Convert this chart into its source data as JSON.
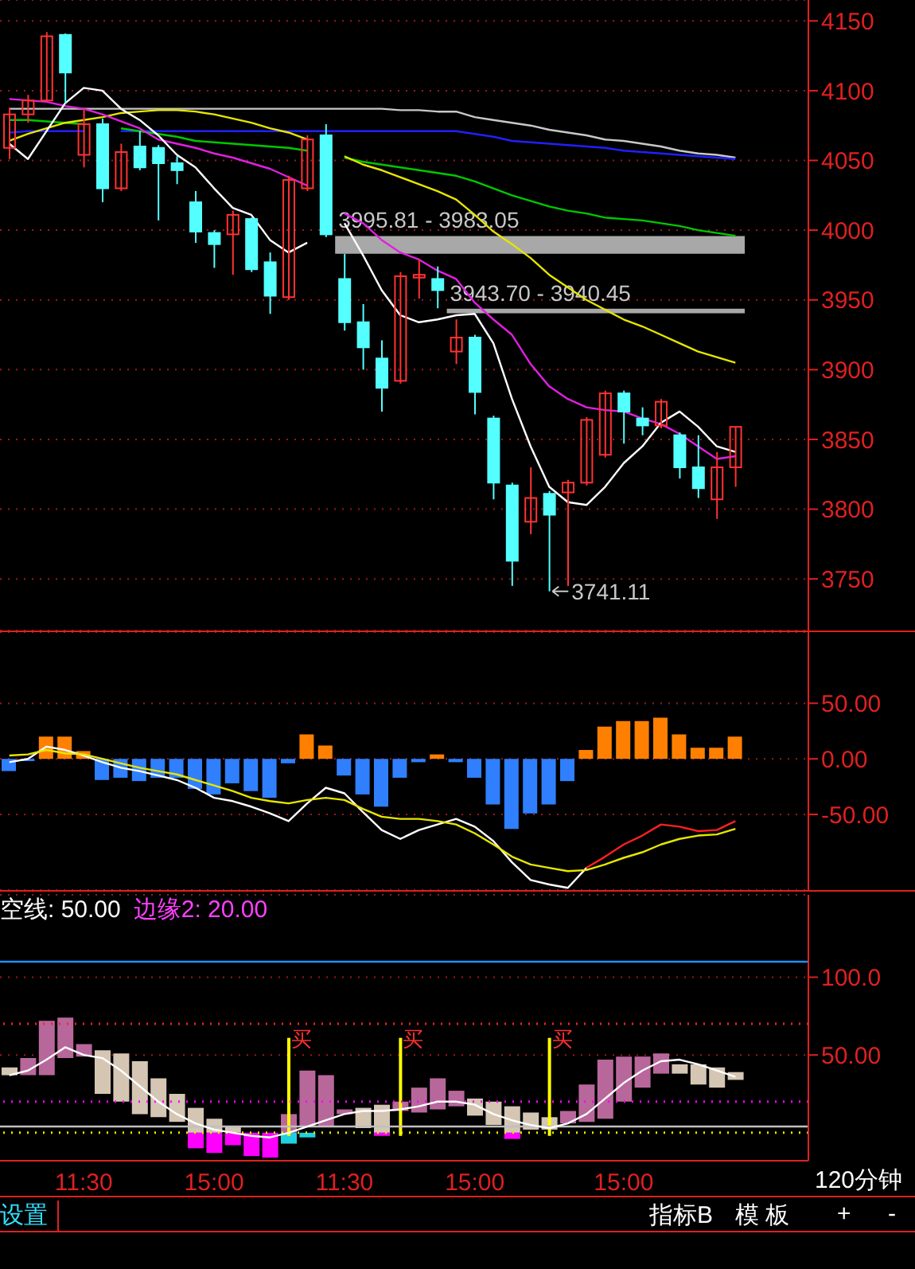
{
  "chart_data": [
    {
      "type": "candlestick",
      "categories": [
        null,
        null,
        null,
        null,
        null,
        null,
        null,
        null,
        null,
        null,
        null,
        null,
        null,
        null,
        null,
        null,
        null,
        null,
        null,
        null,
        null,
        null,
        null,
        null,
        null,
        null,
        null,
        null,
        null,
        null,
        null,
        null,
        null,
        null,
        null,
        null,
        null,
        null,
        null,
        null
      ],
      "ohlc": [
        [
          4059,
          4088,
          4051,
          4083
        ],
        [
          4083,
          4097,
          4077,
          4093
        ],
        [
          4093,
          4142,
          4093,
          4139
        ],
        [
          4140,
          4141,
          4091,
          4113
        ],
        [
          4054,
          4087,
          4045,
          4076
        ],
        [
          4076,
          4080,
          4020,
          4030
        ],
        [
          4030,
          4062,
          4028,
          4056
        ],
        [
          4060,
          4071,
          4043,
          4045
        ],
        [
          4059,
          4061,
          4007,
          4048
        ],
        [
          4048,
          4053,
          4033,
          4043
        ],
        [
          4020,
          4028,
          3991,
          3999
        ],
        [
          3998,
          4000,
          3973,
          3990
        ],
        [
          3997,
          4014,
          3968,
          4011
        ],
        [
          4008,
          4009,
          3970,
          3972
        ],
        [
          3977,
          3984,
          3940,
          3953
        ],
        [
          3952,
          4039,
          3950,
          4036
        ],
        [
          4030,
          4068,
          4028,
          4065
        ],
        [
          4068,
          4076,
          3995,
          3997
        ],
        [
          3965,
          3983,
          3928,
          3934
        ],
        [
          3934,
          3947,
          3900,
          3916
        ],
        [
          3908,
          3921,
          3870,
          3887
        ],
        [
          3892,
          3970,
          3890,
          3967
        ],
        [
          3966,
          3979,
          3951,
          3968
        ],
        [
          3965,
          3974,
          3944,
          3957
        ],
        [
          3913,
          3936,
          3904,
          3923
        ],
        [
          3923,
          3925,
          3868,
          3884
        ],
        [
          3865,
          3867,
          3807,
          3819
        ],
        [
          3817,
          3819,
          3745,
          3763
        ],
        [
          3791,
          3830,
          3782,
          3808
        ],
        [
          3811,
          3813,
          3741.11,
          3796
        ],
        [
          3812,
          3821,
          3745,
          3819
        ],
        [
          3819,
          3866,
          3817,
          3864
        ],
        [
          3839,
          3885,
          3837,
          3883
        ],
        [
          3883,
          3885,
          3847,
          3870
        ],
        [
          3865,
          3873,
          3853,
          3860
        ],
        [
          3860,
          3879,
          3858,
          3877
        ],
        [
          3853,
          3855,
          3822,
          3830
        ],
        [
          3830,
          3853,
          3808,
          3815
        ],
        [
          3807,
          3841,
          3793,
          3830
        ],
        [
          3830,
          3859,
          3816,
          3859
        ]
      ],
      "colors": [
        "#ff3232",
        "#ff3232",
        "#ff3232",
        "#54ffff",
        "#ff3232",
        "#54ffff",
        "#ff3232",
        "#54ffff",
        "#54ffff",
        "#54ffff",
        "#54ffff",
        "#54ffff",
        "#ff3232",
        "#54ffff",
        "#54ffff",
        "#ff3232",
        "#ff3232",
        "#54ffff",
        "#54ffff",
        "#54ffff",
        "#54ffff",
        "#ff3232",
        "#ff3232",
        "#54ffff",
        "#ff3232",
        "#54ffff",
        "#54ffff",
        "#54ffff",
        "#ff3232",
        "#54ffff",
        "#ff3232",
        "#ff3232",
        "#ff3232",
        "#54ffff",
        "#54ffff",
        "#ff3232",
        "#54ffff",
        "#54ffff",
        "#ff3232",
        "#ff3232"
      ],
      "series": [
        {
          "type": "line",
          "color": "#c8c8c8",
          "values": [
            4087,
            4087,
            4087,
            4087,
            4087,
            4087,
            4087,
            4087,
            4087,
            4087,
            4087,
            4087,
            4087,
            4087,
            4087,
            4087,
            4087,
            4087,
            4087,
            4087,
            4087,
            4086,
            4086,
            4085,
            4085,
            4081,
            4079,
            4077,
            4075,
            4072,
            4070,
            4068,
            4065,
            4064,
            4062,
            4060,
            4057,
            4055,
            4054,
            4052
          ]
        },
        {
          "type": "line",
          "color": "#2020ff",
          "values": [
            4070,
            4071,
            4071,
            4071,
            4071,
            null,
            4071,
            4071,
            4071,
            4071,
            4071,
            4071,
            4071,
            4071,
            4071,
            4071,
            4071,
            4071,
            4071,
            4071,
            4071,
            4071,
            4071,
            4071,
            4071,
            4069,
            4067,
            4064,
            4063,
            4062,
            4061,
            4060,
            4059,
            4057,
            4056,
            4055,
            4054,
            4053,
            4052,
            4051
          ]
        },
        {
          "type": "line",
          "color": "#00c800",
          "values": [
            4079,
            4079,
            4078,
            4077,
            4076,
            null,
            4073,
            4071,
            4069,
            4067,
            4064,
            4063,
            4062,
            4061,
            4060,
            4059,
            4057,
            null,
            4052,
            4049,
            4047,
            4045,
            4043,
            4041,
            4039,
            4035,
            4030,
            4025,
            4021,
            4017,
            4014,
            4012,
            4009,
            4008,
            4007,
            4005,
            4003,
            4000,
            3998,
            3996
          ]
        },
        {
          "type": "line",
          "color": "#e6e600",
          "values": [
            4064,
            4069,
            4073,
            4077,
            4079,
            4081,
            4084,
            4085,
            4086,
            4086,
            4085,
            4083,
            4080,
            4077,
            4073,
            4070,
            4065,
            null,
            4053,
            4047,
            4043,
            4038,
            4033,
            4028,
            4022,
            4011,
            3999,
            3990,
            3980,
            3968,
            3959,
            3950,
            3943,
            3936,
            3931,
            3925,
            3919,
            3913,
            3909,
            3905
          ]
        },
        {
          "type": "line",
          "color": "#e020e0",
          "values": [
            4094,
            4093,
            4092,
            4089,
            4087,
            4083,
            4078,
            4073,
            4065,
            4062,
            4059,
            4055,
            4052,
            4048,
            4044,
            4038,
            4032,
            null,
            4012,
            4005,
            3993,
            3984,
            3979,
            3971,
            3965,
            3948,
            3936,
            3925,
            3904,
            3888,
            3879,
            3873,
            3871,
            3870,
            3865,
            3861,
            3854,
            3845,
            3836,
            3838
          ]
        },
        {
          "type": "line",
          "color": "#ffffff",
          "values": [
            4062,
            4051,
            4071,
            4091,
            4102,
            4100,
            4087,
            4079,
            4068,
            4054,
            4045,
            4030,
            4016,
            4011,
            3993,
            3984,
            3991,
            null,
            4005,
            3982,
            3957,
            3939,
            3934,
            3936,
            3939,
            3940,
            3919,
            3879,
            3845,
            3816,
            3805,
            3803,
            3816,
            3833,
            3845,
            3862,
            3870,
            3859,
            3845,
            3841
          ]
        }
      ],
      "ylim": [
        3713,
        4165
      ],
      "yticks": [
        3750,
        3800,
        3850,
        3900,
        3950,
        4000,
        4050,
        4100,
        4150
      ],
      "grid": "y",
      "tick_labels": "y",
      "bands": [
        {
          "axis": "y",
          "from": 3983.05,
          "to": 3995.81,
          "label": "3995.81 - 3983.05",
          "color": "#a8a8a8"
        },
        {
          "axis": "y",
          "from": 3940.45,
          "to": 3943.7,
          "label": "3943.70 - 3940.45",
          "color": "#a8a8a8"
        }
      ],
      "annotations": [
        "3741.11"
      ]
    },
    {
      "type": "bar",
      "categories": [
        null,
        null,
        null,
        null,
        null,
        null,
        null,
        null,
        null,
        null,
        null,
        null,
        null,
        null,
        null,
        null,
        null,
        null,
        null,
        null,
        null,
        null,
        null,
        null,
        null,
        null,
        null,
        null,
        null,
        null,
        null,
        null,
        null,
        null,
        null,
        null,
        null,
        null,
        null,
        null
      ],
      "series": [
        {
          "type": "bar",
          "values": [
            -11,
            -2,
            20,
            20,
            7,
            -19,
            -17,
            -20,
            -17,
            -17,
            -27,
            -32,
            -22,
            -29,
            -35,
            -4,
            22,
            12,
            -15,
            -32,
            -43,
            -17,
            -3,
            4,
            -3,
            -17,
            -41,
            -63,
            -49,
            -41,
            -20,
            8,
            29,
            34,
            34,
            37,
            22,
            10,
            10,
            20
          ],
          "colors": [
            "#2f7fff",
            "#2f7fff",
            "#ff8000",
            "#ff8000",
            "#ff8000",
            "#2f7fff",
            "#2f7fff",
            "#2f7fff",
            "#2f7fff",
            "#2f7fff",
            "#2f7fff",
            "#2f7fff",
            "#2f7fff",
            "#2f7fff",
            "#2f7fff",
            "#2f7fff",
            "#ff8000",
            "#ff8000",
            "#2f7fff",
            "#2f7fff",
            "#2f7fff",
            "#2f7fff",
            "#2f7fff",
            "#ff8000",
            "#2f7fff",
            "#2f7fff",
            "#2f7fff",
            "#2f7fff",
            "#2f7fff",
            "#2f7fff",
            "#2f7fff",
            "#ff8000",
            "#ff8000",
            "#ff8000",
            "#ff8000",
            "#ff8000",
            "#ff8000",
            "#ff8000",
            "#ff8000",
            "#ff8000"
          ]
        },
        {
          "type": "line",
          "color": "#ffffff",
          "values": [
            -3,
            0,
            11,
            8,
            3,
            -3,
            -8,
            -11,
            -15,
            -19,
            -26,
            -35,
            -38,
            -43,
            -49,
            -56,
            -40,
            -26,
            -31,
            -48,
            -64,
            -72,
            -64,
            -59,
            -54,
            -61,
            -74,
            -93,
            -109,
            -113,
            -116,
            -98,
            null,
            null,
            null,
            null,
            null,
            null,
            null,
            null
          ]
        },
        {
          "type": "line",
          "color": "#ff2020",
          "values": [
            null,
            null,
            null,
            null,
            null,
            null,
            null,
            null,
            null,
            null,
            null,
            null,
            null,
            null,
            null,
            null,
            null,
            null,
            null,
            null,
            null,
            null,
            null,
            null,
            null,
            null,
            null,
            null,
            null,
            null,
            null,
            -98,
            -88,
            -77,
            -69,
            -59,
            -61,
            -65,
            -64,
            -56
          ]
        },
        {
          "type": "line",
          "color": "#e6e600",
          "values": [
            3,
            4,
            8,
            5,
            4,
            0,
            -4,
            -8,
            -11,
            -14,
            -19,
            -24,
            -29,
            -35,
            -38,
            -40,
            -37,
            -35,
            -37,
            -45,
            -52,
            -54,
            -54,
            -56,
            -59,
            -67,
            -77,
            -88,
            -95,
            -98,
            -101,
            -100,
            -95,
            -89,
            -84,
            -77,
            -72,
            -69,
            -68,
            -63
          ]
        }
      ],
      "ylim": [
        -118,
        114
      ],
      "yticks": [
        {
          "value": 50,
          "label": "50.00"
        },
        {
          "value": 0,
          "label": "0.00"
        },
        {
          "value": -50,
          "label": "-50.00"
        }
      ],
      "grid": "y",
      "tick_labels": "y"
    },
    {
      "type": "bar",
      "categories": [
        null,
        null,
        null,
        null,
        "11:30",
        null,
        null,
        null,
        null,
        null,
        null,
        "15:00",
        null,
        null,
        null,
        null,
        null,
        null,
        "11:30",
        null,
        null,
        null,
        null,
        null,
        null,
        "15:00",
        null,
        null,
        null,
        null,
        null,
        null,
        null,
        "15:00",
        null,
        null,
        null,
        null,
        null,
        null
      ],
      "series": [
        {
          "type": "bar",
          "base": [
            37,
            37,
            37,
            48,
            49,
            25,
            20,
            12,
            10,
            7,
            0,
            0,
            0,
            null,
            null,
            0,
            4,
            4,
            12,
            3,
            0,
            14,
            13,
            15,
            17,
            11,
            5,
            0,
            2,
            2,
            6,
            7,
            9,
            20,
            29,
            38,
            38,
            31,
            29,
            34
          ],
          "values": [
            5,
            11,
            35,
            26,
            8,
            28,
            31,
            34,
            25,
            18,
            16,
            9,
            4,
            null,
            null,
            12,
            36,
            33,
            3,
            13,
            18,
            6,
            16,
            20,
            10,
            11,
            15,
            17,
            11,
            8,
            8,
            24,
            38,
            29,
            20,
            13,
            6,
            13,
            13,
            5
          ],
          "colors": [
            "#d5c6b4",
            "#b8679b",
            "#b8679b",
            "#b8679b",
            "#b8679b",
            "#d5c6b4",
            "#d5c6b4",
            "#d5c6b4",
            "#d5c6b4",
            "#d5c6b4",
            "#d5c6b4",
            "#d5c6b4",
            "#d5c6b4",
            null,
            null,
            "#b8679b",
            "#b8679b",
            "#b8679b",
            "#b8679b",
            "#d5c6b4",
            "#d5c6b4",
            "#b8679b",
            "#b8679b",
            "#b8679b",
            "#b8679b",
            "#d5c6b4",
            "#d5c6b4",
            "#d5c6b4",
            "#d5c6b4",
            "#d5c6b4",
            "#b8679b",
            "#b8679b",
            "#b8679b",
            "#b8679b",
            "#b8679b",
            "#b8679b",
            "#d5c6b4",
            "#d5c6b4",
            "#d5c6b4",
            "#d5c6b4"
          ]
        },
        {
          "type": "bar",
          "base": [
            null,
            null,
            null,
            null,
            null,
            null,
            null,
            null,
            null,
            null,
            0,
            0,
            0,
            0,
            0,
            0,
            0,
            null,
            null,
            null,
            0,
            null,
            null,
            null,
            null,
            null,
            null,
            0,
            null,
            null,
            null,
            null,
            null,
            null,
            null,
            null,
            null,
            null,
            null,
            null
          ],
          "values": [
            null,
            null,
            null,
            null,
            null,
            null,
            null,
            null,
            null,
            null,
            -10,
            -13,
            -8,
            -15,
            -16,
            -7,
            -3,
            null,
            null,
            null,
            -2,
            null,
            null,
            null,
            null,
            null,
            null,
            -4,
            null,
            null,
            null,
            null,
            null,
            null,
            null,
            null,
            null,
            null,
            null,
            null
          ],
          "colors": [
            null,
            null,
            null,
            null,
            null,
            null,
            null,
            null,
            null,
            null,
            "#ff00ff",
            "#ff00ff",
            "#ff00ff",
            "#ff00ff",
            "#ff00ff",
            "#20d0e0",
            "#20d0e0",
            null,
            null,
            null,
            "#ff00ff",
            null,
            null,
            null,
            null,
            null,
            null,
            "#ff00ff",
            null,
            null,
            null,
            null,
            null,
            null,
            null,
            null,
            null,
            null,
            null,
            null
          ]
        },
        {
          "type": "bar",
          "color": "#ffff00",
          "base": [
            null,
            null,
            null,
            null,
            null,
            null,
            null,
            null,
            null,
            null,
            null,
            null,
            null,
            null,
            null,
            -2,
            null,
            null,
            null,
            null,
            null,
            -2,
            null,
            null,
            null,
            null,
            null,
            null,
            null,
            -2,
            null,
            null,
            null,
            null,
            null,
            null,
            null,
            null,
            null,
            null
          ],
          "values": [
            null,
            null,
            null,
            null,
            null,
            null,
            null,
            null,
            null,
            null,
            null,
            null,
            null,
            null,
            null,
            63,
            null,
            null,
            null,
            null,
            null,
            63,
            null,
            null,
            null,
            null,
            null,
            null,
            null,
            63,
            null,
            null,
            null,
            null,
            null,
            null,
            null,
            null,
            null,
            null
          ],
          "value_labels": [
            null,
            null,
            null,
            null,
            null,
            null,
            null,
            null,
            null,
            null,
            null,
            null,
            null,
            null,
            null,
            "买",
            null,
            null,
            null,
            null,
            null,
            "买",
            null,
            null,
            null,
            null,
            null,
            null,
            null,
            "买",
            null,
            null,
            null,
            null,
            null,
            null,
            null,
            null,
            null,
            null
          ]
        },
        {
          "type": "line",
          "color": "#ffffff",
          "values": [
            37,
            40,
            47,
            55,
            50,
            48,
            40,
            30,
            20,
            12,
            6,
            2,
            0,
            -2,
            -3,
            0,
            4,
            8,
            12,
            14,
            14,
            15,
            17,
            20,
            20,
            18,
            12,
            8,
            5,
            3,
            6,
            12,
            22,
            32,
            40,
            46,
            47,
            44,
            40,
            36
          ]
        }
      ],
      "ylim": [
        -18,
        153
      ],
      "yticks": [
        {
          "value": 100,
          "label": "100.0"
        },
        {
          "value": 50,
          "label": "50.00"
        }
      ],
      "grid": "y",
      "ref_lines": [
        {
          "axis": "y",
          "value": 110,
          "color": "#1e90ff"
        },
        {
          "axis": "y",
          "value": 4,
          "color": "#c0c0c0"
        },
        {
          "axis": "y",
          "value": 70,
          "color": "#ff2020",
          "line_style": "dotted"
        },
        {
          "axis": "y",
          "value": 20,
          "color": "#ff00ff",
          "line_style": "dotted"
        },
        {
          "axis": "y",
          "value": 0,
          "color": "#e6e600",
          "line_style": "dotted"
        }
      ],
      "annotations": [
        "空线: 50.00",
        "边缘2: 20.00",
        "设置",
        "指标B",
        "模 板",
        "+",
        "-",
        "120分钟"
      ]
    }
  ]
}
